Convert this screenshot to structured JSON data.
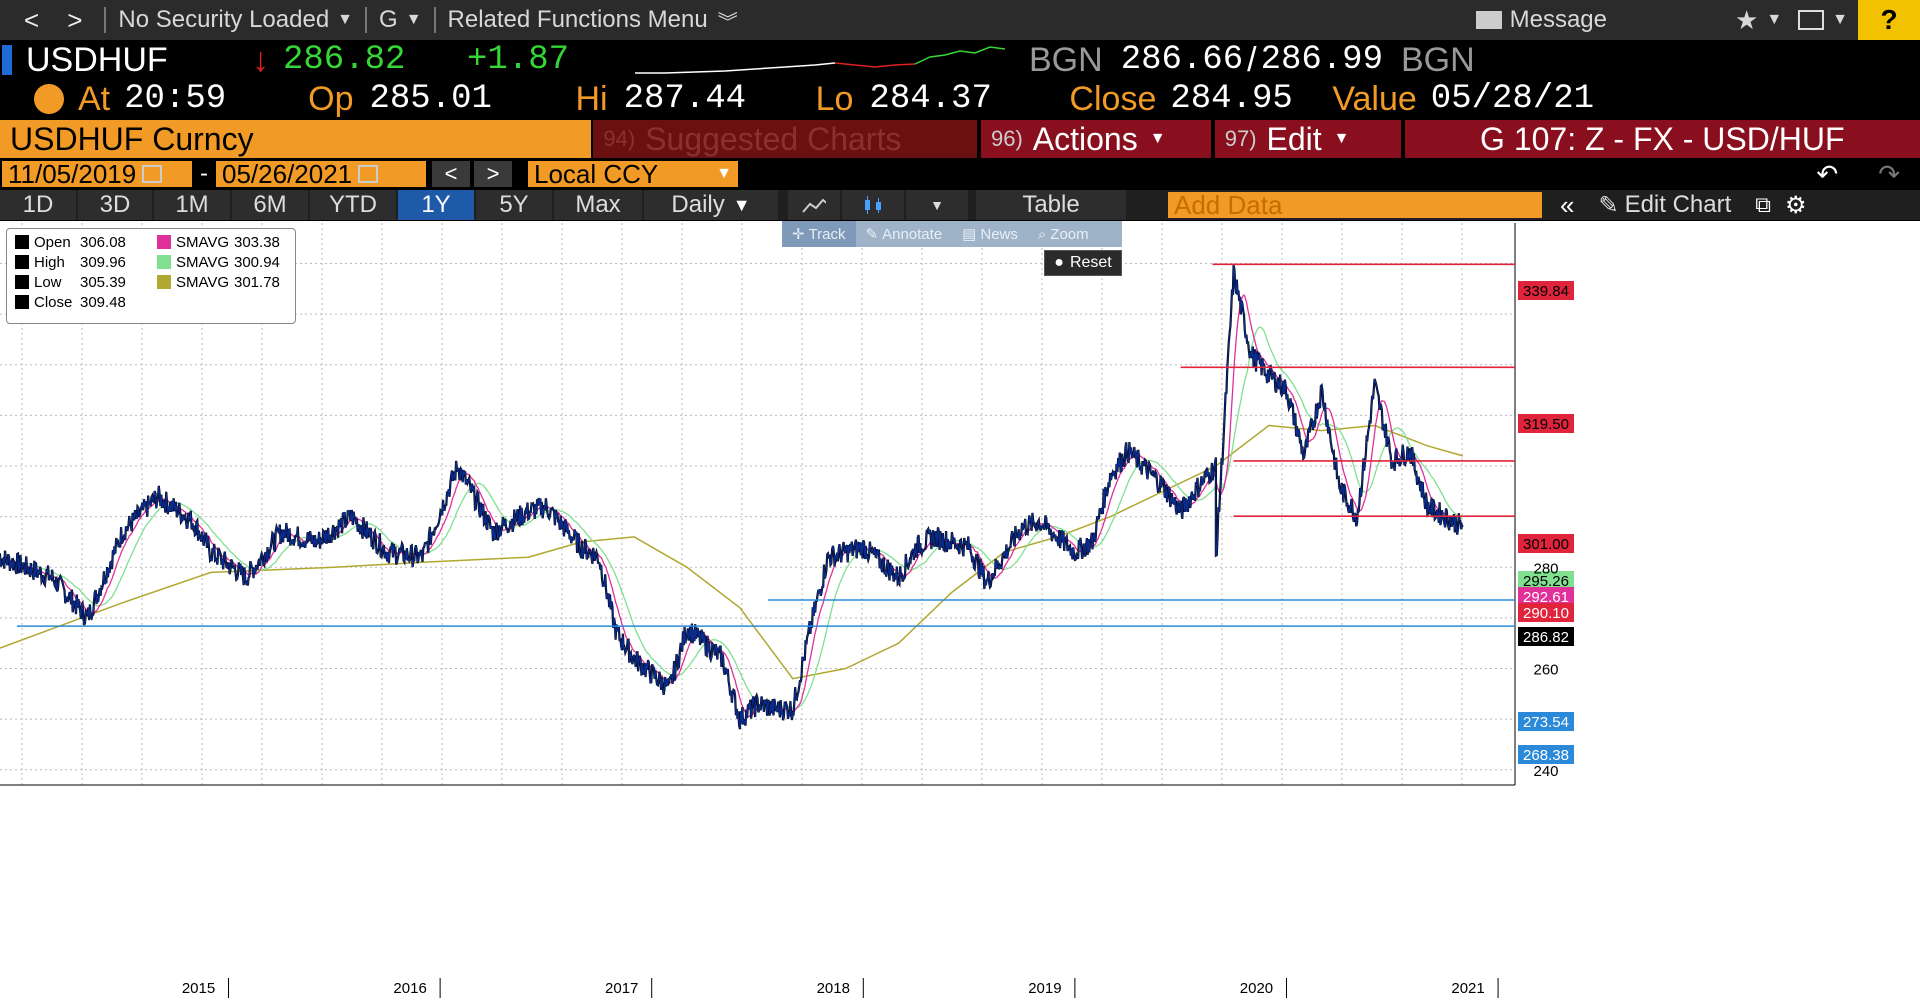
{
  "nav": {
    "back": "<",
    "forward": ">",
    "security": "No Security Loaded",
    "func": "G",
    "related": "Related Functions Menu",
    "message": "Message",
    "help": "?"
  },
  "quote": {
    "ticker": "USDHUF",
    "last": "286.82",
    "change": "+1.87",
    "bid_src": "BGN",
    "bid": "286.66",
    "ask": "286.99",
    "ask_src": "BGN",
    "at_label": "At",
    "time": "20:59",
    "op_label": "Op",
    "open": "285.01",
    "hi_label": "Hi",
    "high": "287.44",
    "lo_label": "Lo",
    "low": "284.37",
    "close_label": "Close",
    "close": "284.95",
    "value_label": "Value",
    "value_date": "05/28/21"
  },
  "bar": {
    "security": "USDHUF Curncy",
    "suggested_num": "94)",
    "suggested": "Suggested Charts",
    "actions_num": "96)",
    "actions": "Actions",
    "edit_num": "97)",
    "edit": "Edit",
    "chart_id": "G 107: Z - FX - USD/HUF"
  },
  "dates": {
    "start": "11/05/2019",
    "dash": "-",
    "end": "05/26/2021",
    "currency": "Local CCY"
  },
  "periods": [
    "1D",
    "3D",
    "1M",
    "6M",
    "YTD",
    "1Y",
    "5Y",
    "Max"
  ],
  "active_period": "1Y",
  "toolbar": {
    "frequency": "Daily",
    "table": "Table",
    "add_data_placeholder": "Add Data",
    "edit_chart": "Edit Chart"
  },
  "chart_tools": {
    "track": "Track",
    "annotate": "Annotate",
    "news": "News",
    "zoom": "Zoom",
    "reset": "Reset"
  },
  "legend": {
    "open_label": "Open",
    "open": "306.08",
    "high_label": "High",
    "high": "309.96",
    "low_label": "Low",
    "low": "305.39",
    "close_label": "Close",
    "close": "309.48",
    "sma1_label": "SMAVG",
    "sma1": "303.38",
    "sma2_label": "SMAVG",
    "sma2": "300.94",
    "sma3_label": "SMAVG",
    "sma3": "301.78"
  },
  "colors": {
    "price": "#0a2a8c",
    "sma_short": "#e0309a",
    "sma_mid": "#80e090",
    "sma_long": "#b0a830",
    "resistance": "#e0243c",
    "support": "#2a8ad8",
    "last": "#000000"
  },
  "chart_data": {
    "type": "line",
    "x_labels": [
      "2015",
      "2016",
      "2017",
      "2018",
      "2019",
      "2020",
      "2021"
    ],
    "y_ticks": [
      240,
      260,
      280
    ],
    "ylim": [
      237,
      348
    ],
    "grid": true,
    "series": [
      {
        "x": [
          "2014-06",
          "2014-09",
          "2014-11",
          "2015-01",
          "2015-03",
          "2015-05",
          "2015-06",
          "2015-08",
          "2015-10",
          "2015-12",
          "2016-02",
          "2016-04",
          "2016-06",
          "2016-08",
          "2016-10",
          "2016-12",
          "2017-01",
          "2017-03",
          "2017-04",
          "2017-05",
          "2017-06",
          "2017-08",
          "2017-09",
          "2017-11",
          "2017-12",
          "2018-01",
          "2018-02",
          "2018-03",
          "2018-04",
          "2018-05",
          "2018-07",
          "2018-09",
          "2018-10",
          "2018-11",
          "2019-01",
          "2019-02",
          "2019-04",
          "2019-05",
          "2019-07",
          "2019-08",
          "2019-09",
          "2019-10",
          "2019-12",
          "2020-01",
          "2020-02",
          "2020-03",
          "2020-03",
          "2020-04",
          "2020-05",
          "2020-06",
          "2020-07",
          "2020-08",
          "2020-09",
          "2020-10",
          "2020-11",
          "2020-12",
          "2021-01",
          "2021-02",
          "2021-03",
          "2021-04",
          "2021-05"
        ],
        "values": [
          282,
          278,
          270,
          287,
          294,
          289,
          283,
          278,
          287,
          285,
          290,
          283,
          282,
          300,
          287,
          291,
          292,
          284,
          282,
          267,
          262,
          256,
          268,
          262,
          250,
          253,
          252,
          252,
          268,
          282,
          284,
          278,
          284,
          286,
          284,
          277,
          288,
          289,
          283,
          285,
          298,
          303,
          296,
          291,
          296,
          300,
          282,
          338,
          322,
          318,
          315,
          302,
          315,
          296,
          290,
          316,
          301,
          303,
          292,
          290,
          288
        ]
      },
      {
        "name": "SMAVG",
        "x": [
          "2014-06",
          "2015-01",
          "2015-06",
          "2016-01",
          "2016-06",
          "2016-12",
          "2017-03",
          "2017-06",
          "2017-09",
          "2017-12",
          "2018-03",
          "2018-06",
          "2018-09",
          "2018-12",
          "2019-03",
          "2019-06",
          "2019-09",
          "2019-12",
          "2020-03",
          "2020-06",
          "2020-09",
          "2020-12",
          "2021-03",
          "2021-05"
        ],
        "values": [
          264,
          273,
          279,
          280,
          281,
          282,
          285,
          286,
          280,
          272,
          258,
          260,
          265,
          275,
          283,
          286,
          290,
          295,
          300,
          308,
          307,
          308,
          304,
          302
        ]
      }
    ],
    "horizontal_levels": [
      339.84,
      319.5,
      301.0,
      290.1,
      273.54,
      268.38
    ],
    "right_labels": [
      "339.84",
      "319.50",
      "301.00",
      "295.26",
      "292.61",
      "290.10",
      "286.82",
      "273.54",
      "268.38"
    ]
  }
}
